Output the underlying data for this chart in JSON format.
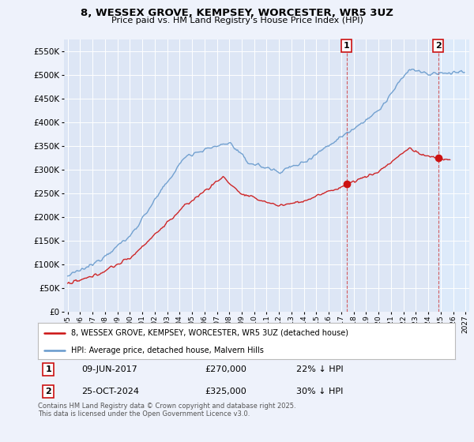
{
  "title1": "8, WESSEX GROVE, KEMPSEY, WORCESTER, WR5 3UZ",
  "title2": "Price paid vs. HM Land Registry's House Price Index (HPI)",
  "background_color": "#eef2fb",
  "plot_bg_color": "#dde6f5",
  "grid_color": "#ffffff",
  "hpi_color": "#6699cc",
  "hpi_fill_color": "#ddeeff",
  "price_color": "#cc1111",
  "marker1_date_x": 2017.44,
  "marker1_price": 270000,
  "marker2_date_x": 2024.81,
  "marker2_price": 325000,
  "marker1_label": "1",
  "marker2_label": "2",
  "annotation1": [
    "09-JUN-2017",
    "£270,000",
    "22% ↓ HPI"
  ],
  "annotation2": [
    "25-OCT-2024",
    "£325,000",
    "30% ↓ HPI"
  ],
  "legend_label_price": "8, WESSEX GROVE, KEMPSEY, WORCESTER, WR5 3UZ (detached house)",
  "legend_label_hpi": "HPI: Average price, detached house, Malvern Hills",
  "footer": "Contains HM Land Registry data © Crown copyright and database right 2025.\nThis data is licensed under the Open Government Licence v3.0.",
  "ylim": [
    0,
    575000
  ],
  "xlim_start": 1994.7,
  "xlim_end": 2027.3
}
